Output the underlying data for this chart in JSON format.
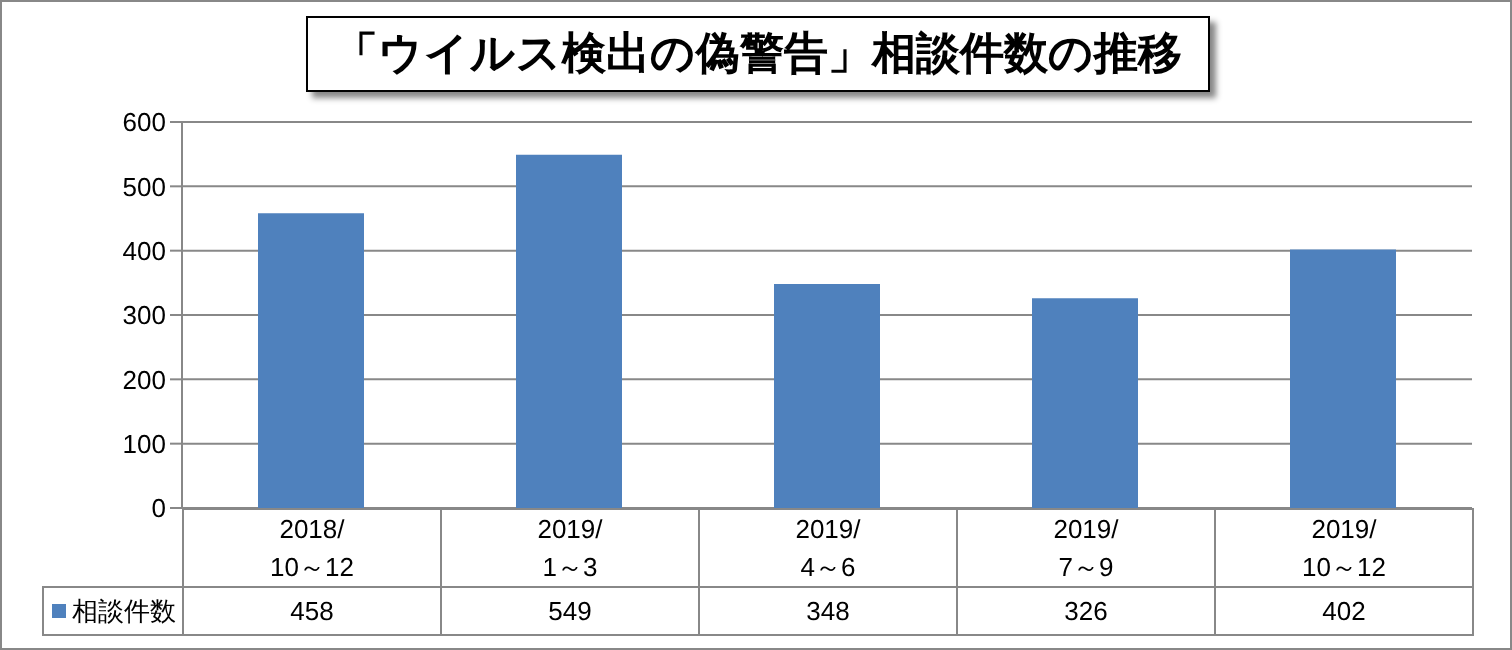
{
  "chart_data": {
    "type": "bar",
    "title": "「ウイルス検出の偽警告」相談件数の推移",
    "categories": [
      "2018/\n10～12",
      "2019/\n1～3",
      "2019/\n4～6",
      "2019/\n7～9",
      "2019/\n10～12"
    ],
    "series": [
      {
        "name": "相談件数",
        "color": "#4f81bd",
        "values": [
          458,
          549,
          348,
          326,
          402
        ]
      }
    ],
    "ylim": [
      0,
      600
    ],
    "yticks": [
      0,
      100,
      200,
      300,
      400,
      500,
      600
    ],
    "grid": "y",
    "legend": "bottom left",
    "data_labels": true
  }
}
